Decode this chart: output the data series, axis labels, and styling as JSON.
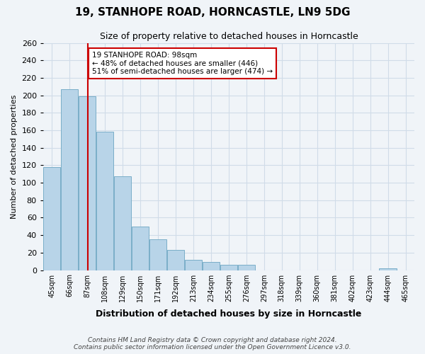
{
  "title": "19, STANHOPE ROAD, HORNCASTLE, LN9 5DG",
  "subtitle": "Size of property relative to detached houses in Horncastle",
  "bar_values": [
    118,
    207,
    199,
    158,
    107,
    50,
    35,
    23,
    12,
    9,
    6,
    6,
    0,
    0,
    0,
    0,
    0,
    0,
    0,
    2
  ],
  "bin_labels": [
    "45sqm",
    "66sqm",
    "87sqm",
    "108sqm",
    "129sqm",
    "150sqm",
    "171sqm",
    "192sqm",
    "213sqm",
    "234sqm",
    "255sqm",
    "276sqm",
    "297sqm",
    "318sqm",
    "339sqm",
    "360sqm",
    "381sqm",
    "402sqm",
    "423sqm",
    "444sqm",
    "465sqm"
  ],
  "bar_color": "#b8d4e8",
  "bar_edge_color": "#7aaec8",
  "property_line_x": 98,
  "bin_edges": [
    45,
    66,
    87,
    108,
    129,
    150,
    171,
    192,
    213,
    234,
    255,
    276,
    297,
    318,
    339,
    360,
    381,
    402,
    423,
    444,
    465
  ],
  "ylim": [
    0,
    260
  ],
  "ylabel": "Number of detached properties",
  "xlabel": "Distribution of detached houses by size in Horncastle",
  "annotation_title": "19 STANHOPE ROAD: 98sqm",
  "annotation_line1": "← 48% of detached houses are smaller (446)",
  "annotation_line2": "51% of semi-detached houses are larger (474) →",
  "annotation_box_color": "#ffffff",
  "annotation_box_edge": "#cc0000",
  "vline_color": "#cc0000",
  "footer1": "Contains HM Land Registry data © Crown copyright and database right 2024.",
  "footer2": "Contains public sector information licensed under the Open Government Licence v3.0.",
  "grid_color": "#d0dce8",
  "background_color": "#f0f4f8"
}
